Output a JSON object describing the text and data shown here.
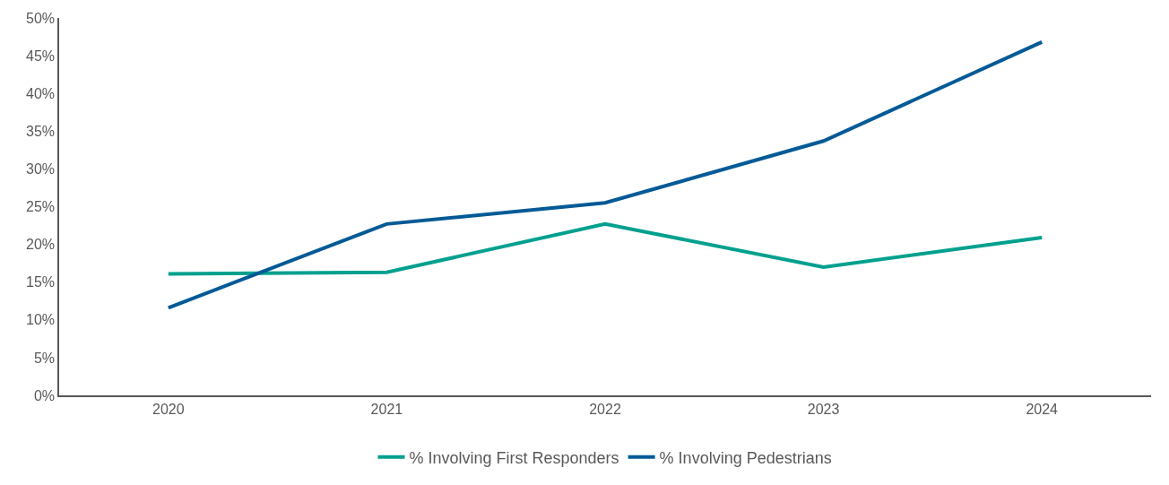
{
  "chart_data": {
    "type": "line",
    "categories": [
      "2020",
      "2021",
      "2022",
      "2023",
      "2024"
    ],
    "series": [
      {
        "name": "% Involving First Responders",
        "color": "#00a08e",
        "values": [
          16.1,
          16.3,
          22.7,
          17.0,
          20.9
        ]
      },
      {
        "name": "% Involving Pedestrians",
        "color": "#005a96",
        "values": [
          11.6,
          22.7,
          25.5,
          33.7,
          46.8
        ]
      }
    ],
    "ylim": [
      0,
      50
    ],
    "yticks": [
      {
        "value": 0,
        "label": "0%"
      },
      {
        "value": 5,
        "label": "5%"
      },
      {
        "value": 10,
        "label": "10%"
      },
      {
        "value": 15,
        "label": "15%"
      },
      {
        "value": 20,
        "label": "20%"
      },
      {
        "value": 25,
        "label": "25%"
      },
      {
        "value": 30,
        "label": "30%"
      },
      {
        "value": 35,
        "label": "35%"
      },
      {
        "value": 40,
        "label": "40%"
      },
      {
        "value": 45,
        "label": "45%"
      },
      {
        "value": 50,
        "label": "50%"
      }
    ],
    "grid": false,
    "legend": "bottom",
    "marker": "none",
    "line_style": "solid"
  }
}
